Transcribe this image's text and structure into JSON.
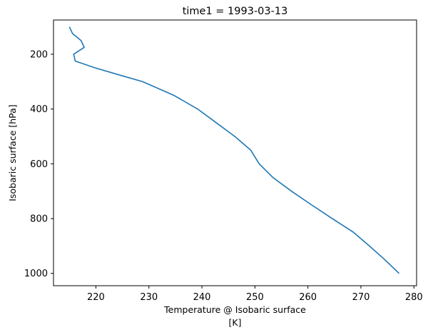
{
  "chart_data": {
    "type": "line",
    "title": "time1 = 1993-03-13",
    "xlabel_line1": "Temperature @ Isobaric surface",
    "xlabel_line2": "[K]",
    "ylabel": "Isobaric surface [hPa]",
    "xlim": [
      212.0,
      280.5
    ],
    "ylim": [
      1045,
      75
    ],
    "y_inverted": true,
    "grid": false,
    "xticks": [
      220,
      230,
      240,
      250,
      260,
      270,
      280
    ],
    "yticks": [
      200,
      400,
      600,
      800,
      1000
    ],
    "series": [
      {
        "color": "#1f77b4",
        "points": [
          {
            "x": 215.0,
            "y": 100
          },
          {
            "x": 215.6,
            "y": 125
          },
          {
            "x": 217.2,
            "y": 150
          },
          {
            "x": 217.8,
            "y": 175
          },
          {
            "x": 215.8,
            "y": 200
          },
          {
            "x": 216.1,
            "y": 225
          },
          {
            "x": 219.9,
            "y": 250
          },
          {
            "x": 224.3,
            "y": 275
          },
          {
            "x": 228.8,
            "y": 300
          },
          {
            "x": 234.7,
            "y": 350
          },
          {
            "x": 239.2,
            "y": 400
          },
          {
            "x": 242.7,
            "y": 450
          },
          {
            "x": 246.2,
            "y": 500
          },
          {
            "x": 249.2,
            "y": 550
          },
          {
            "x": 250.8,
            "y": 600
          },
          {
            "x": 253.4,
            "y": 650
          },
          {
            "x": 256.9,
            "y": 700
          },
          {
            "x": 260.7,
            "y": 750
          },
          {
            "x": 264.6,
            "y": 800
          },
          {
            "x": 268.6,
            "y": 850
          },
          {
            "x": 271.6,
            "y": 900
          },
          {
            "x": 274.5,
            "y": 950
          },
          {
            "x": 277.2,
            "y": 1000
          }
        ]
      }
    ]
  }
}
